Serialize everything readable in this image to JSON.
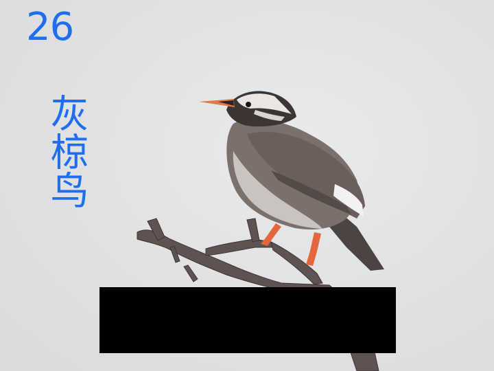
{
  "slide": {
    "number": "26",
    "title": "灰椋鸟"
  },
  "photo": {
    "subject_icon": "bird-icon",
    "branch_icon": "branch-icon"
  },
  "colors": {
    "text": "#1f6ef0",
    "redaction": "#000000",
    "background": "#e1e3e4"
  }
}
